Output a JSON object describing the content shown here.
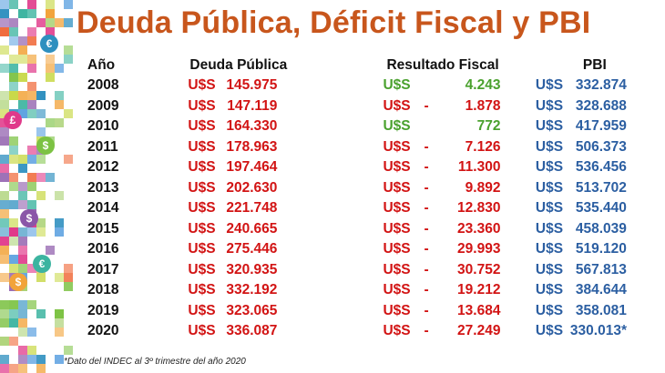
{
  "chart_data": {
    "type": "table",
    "title": "Deuda Pública, Déficit Fiscal y PBI",
    "columns": [
      "Año",
      "Deuda Pública",
      "Resultado Fiscal",
      "PBI"
    ],
    "currency": "U$S",
    "rows": [
      {
        "year": "2008",
        "debt": "145.975",
        "result_sign": "",
        "result": "4.243",
        "result_positive": true,
        "pbi": "332.874"
      },
      {
        "year": "2009",
        "debt": "147.119",
        "result_sign": "-",
        "result": "1.878",
        "result_positive": false,
        "pbi": "328.688"
      },
      {
        "year": "2010",
        "debt": "164.330",
        "result_sign": "",
        "result": "772",
        "result_positive": true,
        "pbi": "417.959"
      },
      {
        "year": "2011",
        "debt": "178.963",
        "result_sign": "-",
        "result": "7.126",
        "result_positive": false,
        "pbi": "506.373"
      },
      {
        "year": "2012",
        "debt": "197.464",
        "result_sign": "-",
        "result": "11.300",
        "result_positive": false,
        "pbi": "536.456"
      },
      {
        "year": "2013",
        "debt": "202.630",
        "result_sign": "-",
        "result": "9.892",
        "result_positive": false,
        "pbi": "513.702"
      },
      {
        "year": "2014",
        "debt": "221.748",
        "result_sign": "-",
        "result": "12.830",
        "result_positive": false,
        "pbi": "535.440"
      },
      {
        "year": "2015",
        "debt": "240.665",
        "result_sign": "-",
        "result": "23.360",
        "result_positive": false,
        "pbi": "458.039"
      },
      {
        "year": "2016",
        "debt": "275.446",
        "result_sign": "-",
        "result": "29.993",
        "result_positive": false,
        "pbi": "519.120"
      },
      {
        "year": "2017",
        "debt": "320.935",
        "result_sign": "-",
        "result": "30.752",
        "result_positive": false,
        "pbi": "567.813"
      },
      {
        "year": "2018",
        "debt": "332.192",
        "result_sign": "-",
        "result": "19.212",
        "result_positive": false,
        "pbi": "384.644"
      },
      {
        "year": "2019",
        "debt": "323.065",
        "result_sign": "-",
        "result": "13.684",
        "result_positive": false,
        "pbi": "358.081"
      },
      {
        "year": "2020",
        "debt": "336.087",
        "result_sign": "-",
        "result": "27.249",
        "result_positive": false,
        "pbi": "330.013*"
      }
    ],
    "footnote": "*Dato del INDEC al 3º trimestre del año 2020"
  },
  "colors": {
    "title": "#c8561c",
    "debt": "#d21414",
    "result_positive": "#4aa12e",
    "result_negative": "#d21414",
    "pbi": "#2c5fa2"
  },
  "decoration": {
    "mosaic_icons": [
      "euro-icon",
      "dollar-icon",
      "pound-icon",
      "dollar-icon",
      "euro-icon",
      "dollar-icon"
    ]
  }
}
